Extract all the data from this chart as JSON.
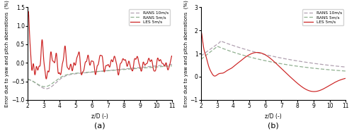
{
  "subplot_a": {
    "title": "(a)",
    "xlabel": "z/D (-)",
    "ylabel": "Error due to yaw and pitch aberrations  (%)",
    "xlim": [
      2,
      11
    ],
    "ylim": [
      -1,
      1.5
    ],
    "yticks": [
      -1,
      -0.5,
      0,
      0.5,
      1,
      1.5
    ],
    "xticks": [
      2,
      3,
      4,
      5,
      6,
      7,
      8,
      9,
      10,
      11
    ],
    "legend": [
      "RANS 10m/s",
      "RANS 5m/s",
      "LES 5m/s"
    ],
    "RANS_10_color": "#b0a0b0",
    "RANS_5_color": "#90b090",
    "LES_color": "#cc2222"
  },
  "subplot_b": {
    "title": "(b)",
    "xlabel": "z/D (-)",
    "ylabel": "Error due to yaw and pitch aberrations  (%)",
    "xlim": [
      2,
      11
    ],
    "ylim": [
      -1,
      3
    ],
    "yticks": [
      -1,
      0,
      1,
      2,
      3
    ],
    "xticks": [
      2,
      3,
      4,
      5,
      6,
      7,
      8,
      9,
      10,
      11
    ],
    "legend": [
      "RANS 10m/s",
      "RANS 5m/s",
      "LES 5m/s"
    ],
    "RANS_10_color": "#b0a0b0",
    "RANS_5_color": "#90b090",
    "LES_color": "#cc2222"
  }
}
